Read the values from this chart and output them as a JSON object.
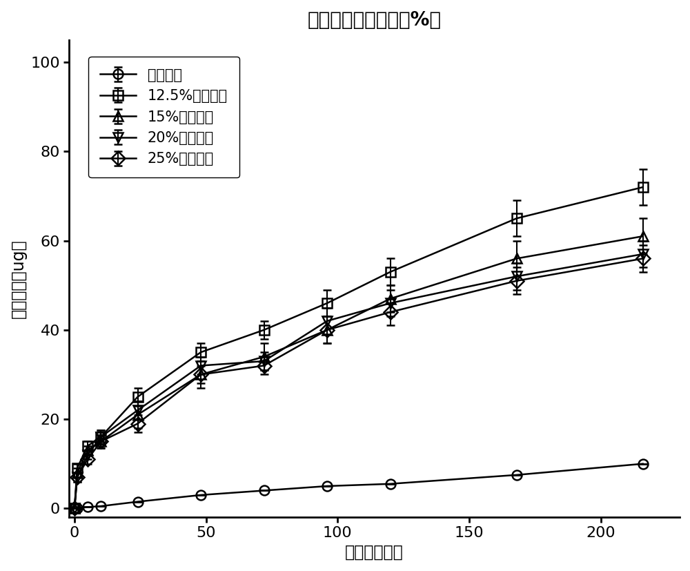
{
  "title": "释放的量（右旋糖酐%）",
  "xlabel": "时间（小时）",
  "ylabel": "释放的量（ug）",
  "xlim": [
    -2,
    230
  ],
  "ylim": [
    -2,
    105
  ],
  "xticks": [
    0,
    50,
    100,
    150,
    200
  ],
  "yticks": [
    0,
    20,
    40,
    60,
    80,
    100
  ],
  "series": [
    {
      "label": "空水凝胶",
      "marker": "o",
      "x": [
        0,
        1,
        5,
        10,
        24,
        48,
        72,
        96,
        120,
        168,
        216
      ],
      "y": [
        0,
        0,
        0.3,
        0.5,
        1.5,
        3,
        4,
        5,
        5.5,
        7.5,
        10
      ],
      "yerr": [
        0,
        0,
        0,
        0,
        0,
        0,
        0,
        0,
        0,
        0,
        0
      ],
      "fillstyle": "none"
    },
    {
      "label": "12.5%右旋糖酐",
      "marker": "s",
      "x": [
        0,
        1,
        5,
        10,
        24,
        48,
        72,
        96,
        120,
        168,
        216
      ],
      "y": [
        0,
        9,
        14,
        16,
        25,
        35,
        40,
        46,
        53,
        65,
        72
      ],
      "yerr": [
        0,
        1,
        1,
        1.5,
        2,
        2,
        2,
        3,
        3,
        4,
        4
      ],
      "fillstyle": "none"
    },
    {
      "label": "15%右旋糖酐",
      "marker": "^",
      "x": [
        0,
        1,
        5,
        10,
        24,
        48,
        72,
        96,
        120,
        168,
        216
      ],
      "y": [
        0,
        8,
        13,
        15,
        21,
        30,
        34,
        40,
        47,
        56,
        61
      ],
      "yerr": [
        0,
        1,
        1,
        1.5,
        3,
        3,
        3,
        3,
        3,
        4,
        4
      ],
      "fillstyle": "none"
    },
    {
      "label": "20%右旋糖酐",
      "marker": "v",
      "x": [
        0,
        1,
        5,
        10,
        24,
        48,
        72,
        96,
        120,
        168,
        216
      ],
      "y": [
        0,
        7,
        12,
        16,
        22,
        32,
        33,
        42,
        46,
        52,
        57
      ],
      "yerr": [
        0,
        1,
        1,
        1.5,
        2,
        2,
        2,
        3,
        3,
        3,
        3
      ],
      "fillstyle": "none"
    },
    {
      "label": "25%右旋糖酐",
      "marker": "D",
      "x": [
        0,
        1,
        5,
        10,
        24,
        48,
        72,
        96,
        120,
        168,
        216
      ],
      "y": [
        0,
        7,
        11,
        15,
        19,
        30,
        32,
        40,
        44,
        51,
        56
      ],
      "yerr": [
        0,
        1,
        1,
        1.5,
        2,
        2,
        2,
        3,
        3,
        3,
        3
      ],
      "fillstyle": "none"
    }
  ],
  "line_color": "#000000",
  "background_color": "#ffffff",
  "title_fontsize": 20,
  "label_fontsize": 17,
  "tick_fontsize": 16,
  "legend_fontsize": 15,
  "marker_size": 10,
  "linewidth": 1.8
}
